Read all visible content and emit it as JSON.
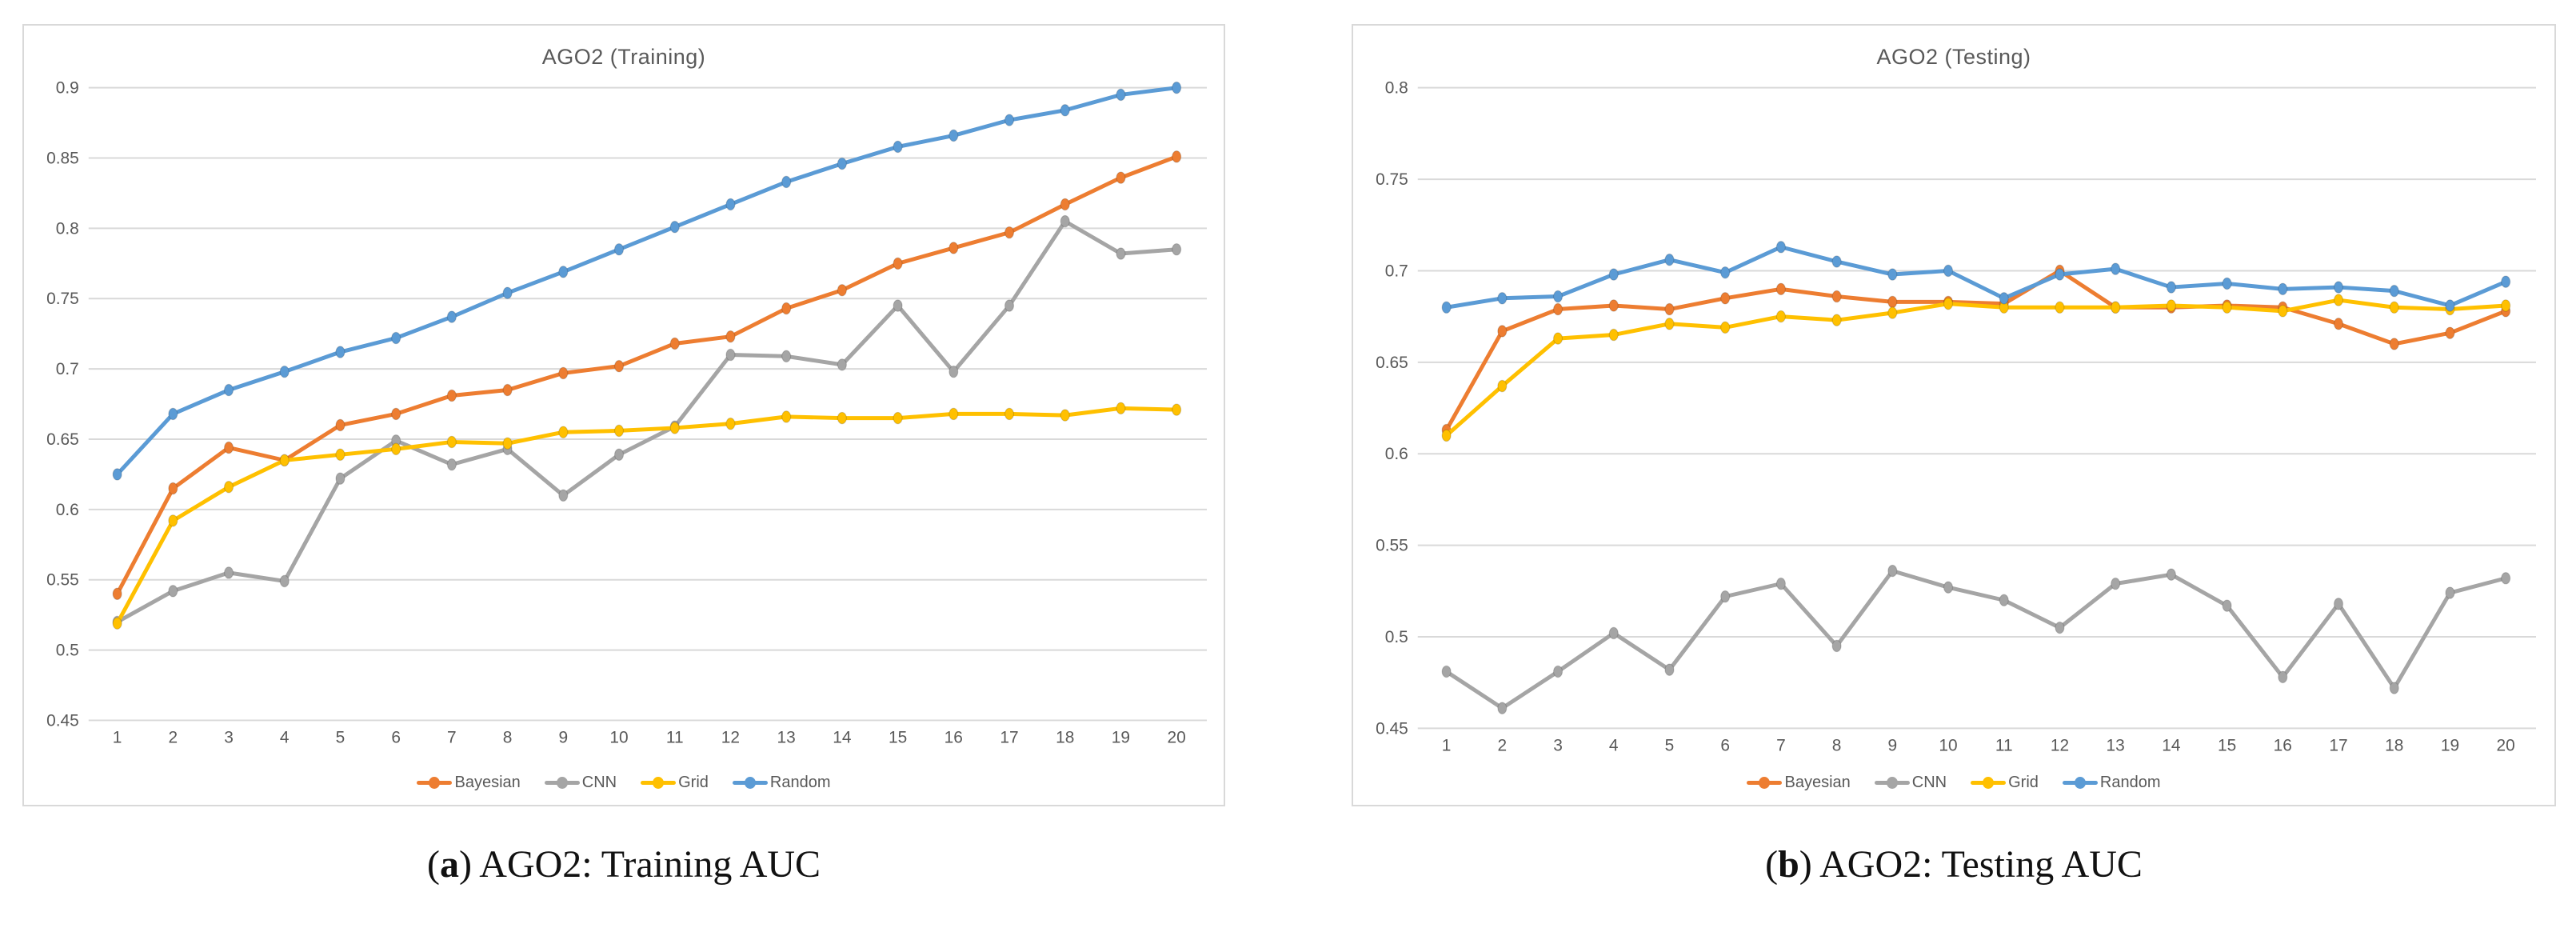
{
  "colors": {
    "bayesian": "#ED7D31",
    "cnn": "#A5A5A5",
    "grid": "#FFC000",
    "random": "#5B9BD5",
    "gridline": "#D9D9D9",
    "axis_text": "#595959",
    "title_text": "#595959",
    "panel_border": "#D9D9D9",
    "caption_text": "#111111"
  },
  "figure": {
    "captions": [
      {
        "open": "(",
        "label": "a",
        "close": ") ",
        "text": "AGO2: Training AUC"
      },
      {
        "open": "(",
        "label": "b",
        "close": ") ",
        "text": "AGO2: Testing AUC"
      }
    ]
  },
  "chart_data": [
    {
      "type": "line",
      "title": "AGO2 (Training)",
      "xlabel": "",
      "ylabel": "",
      "x": [
        1,
        2,
        3,
        4,
        5,
        6,
        7,
        8,
        9,
        10,
        11,
        12,
        13,
        14,
        15,
        16,
        17,
        18,
        19,
        20
      ],
      "ylim": [
        0.45,
        0.9
      ],
      "ytick_step": 0.05,
      "ytick_labels": [
        "0.9",
        "0.85",
        "0.8",
        "0.75",
        "0.7",
        "0.65",
        "0.6",
        "0.55",
        "0.5",
        "0.45"
      ],
      "grid": true,
      "legend_position": "bottom",
      "series": [
        {
          "name": "Bayesian",
          "color": "#ED7D31",
          "values": [
            0.54,
            0.615,
            0.644,
            0.635,
            0.66,
            0.668,
            0.681,
            0.685,
            0.697,
            0.702,
            0.718,
            0.723,
            0.743,
            0.756,
            0.775,
            0.786,
            0.797,
            0.817,
            0.836,
            0.851
          ]
        },
        {
          "name": "CNN",
          "color": "#A5A5A5",
          "values": [
            0.52,
            0.542,
            0.555,
            0.549,
            0.622,
            0.649,
            0.632,
            0.643,
            0.61,
            0.639,
            0.659,
            0.71,
            0.709,
            0.703,
            0.745,
            0.698,
            0.745,
            0.805,
            0.782,
            0.785
          ]
        },
        {
          "name": "Grid",
          "color": "#FFC000",
          "values": [
            0.519,
            0.592,
            0.616,
            0.635,
            0.639,
            0.643,
            0.648,
            0.647,
            0.655,
            0.656,
            0.658,
            0.661,
            0.666,
            0.665,
            0.665,
            0.668,
            0.668,
            0.667,
            0.672,
            0.671
          ]
        },
        {
          "name": "Random",
          "color": "#5B9BD5",
          "values": [
            0.625,
            0.668,
            0.685,
            0.698,
            0.712,
            0.722,
            0.737,
            0.754,
            0.769,
            0.785,
            0.801,
            0.817,
            0.833,
            0.846,
            0.858,
            0.866,
            0.877,
            0.884,
            0.895,
            0.9
          ]
        }
      ]
    },
    {
      "type": "line",
      "title": "AGO2 (Testing)",
      "xlabel": "",
      "ylabel": "",
      "x": [
        1,
        2,
        3,
        4,
        5,
        6,
        7,
        8,
        9,
        10,
        11,
        12,
        13,
        14,
        15,
        16,
        17,
        18,
        19,
        20
      ],
      "ylim": [
        0.45,
        0.8
      ],
      "ytick_step": 0.05,
      "ytick_labels": [
        "0.8",
        "0.75",
        "0.7",
        "0.65",
        "0.6",
        "0.55",
        "0.5",
        "0.45"
      ],
      "grid": true,
      "legend_position": "bottom",
      "series": [
        {
          "name": "Bayesian",
          "color": "#ED7D31",
          "values": [
            0.613,
            0.667,
            0.679,
            0.681,
            0.679,
            0.685,
            0.69,
            0.686,
            0.683,
            0.683,
            0.682,
            0.7,
            0.68,
            0.68,
            0.681,
            0.68,
            0.671,
            0.66,
            0.666,
            0.678
          ]
        },
        {
          "name": "CNN",
          "color": "#A5A5A5",
          "values": [
            0.481,
            0.461,
            0.481,
            0.502,
            0.482,
            0.522,
            0.529,
            0.495,
            0.536,
            0.527,
            0.52,
            0.505,
            0.529,
            0.534,
            0.517,
            0.478,
            0.518,
            0.472,
            0.524,
            0.532
          ]
        },
        {
          "name": "Grid",
          "color": "#FFC000",
          "values": [
            0.61,
            0.637,
            0.663,
            0.665,
            0.671,
            0.669,
            0.675,
            0.673,
            0.677,
            0.682,
            0.68,
            0.68,
            0.68,
            0.681,
            0.68,
            0.678,
            0.684,
            0.68,
            0.679,
            0.681
          ]
        },
        {
          "name": "Random",
          "color": "#5B9BD5",
          "values": [
            0.68,
            0.685,
            0.686,
            0.698,
            0.706,
            0.699,
            0.713,
            0.705,
            0.698,
            0.7,
            0.685,
            0.698,
            0.701,
            0.691,
            0.693,
            0.69,
            0.691,
            0.689,
            0.681,
            0.694
          ]
        }
      ]
    }
  ]
}
